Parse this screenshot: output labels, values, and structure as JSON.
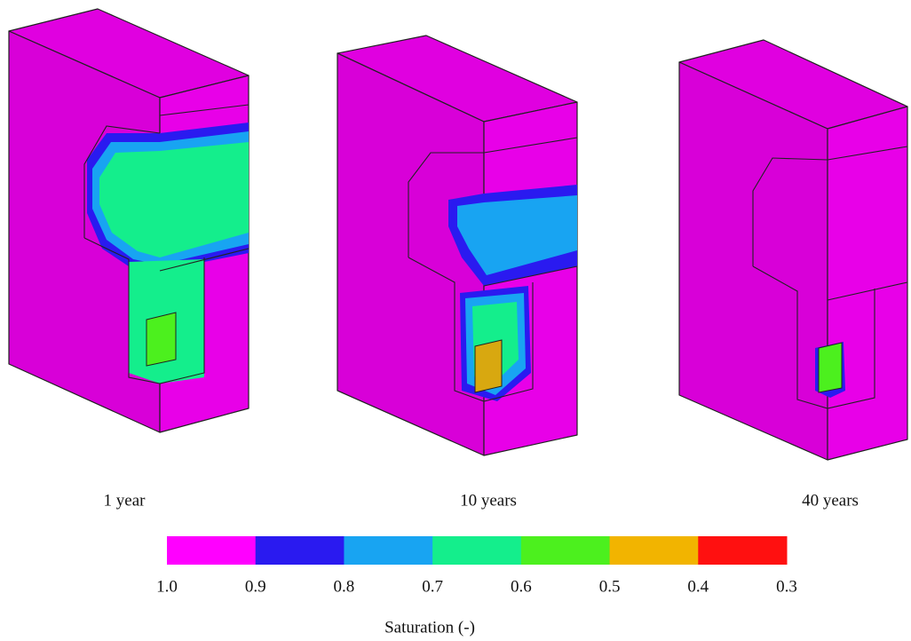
{
  "panels": [
    {
      "label": "1 year"
    },
    {
      "label": "10 years"
    },
    {
      "label": "40 years"
    }
  ],
  "colorbar": {
    "ticks": [
      "1.0",
      "0.9",
      "0.8",
      "0.7",
      "0.6",
      "0.5",
      "0.4",
      "0.3"
    ],
    "colors": [
      "#ff00ff",
      "#2a1af0",
      "#18a4f2",
      "#14ee8c",
      "#4cf01e",
      "#f2b400",
      "#ff1010"
    ],
    "label": "Saturation (-)"
  }
}
